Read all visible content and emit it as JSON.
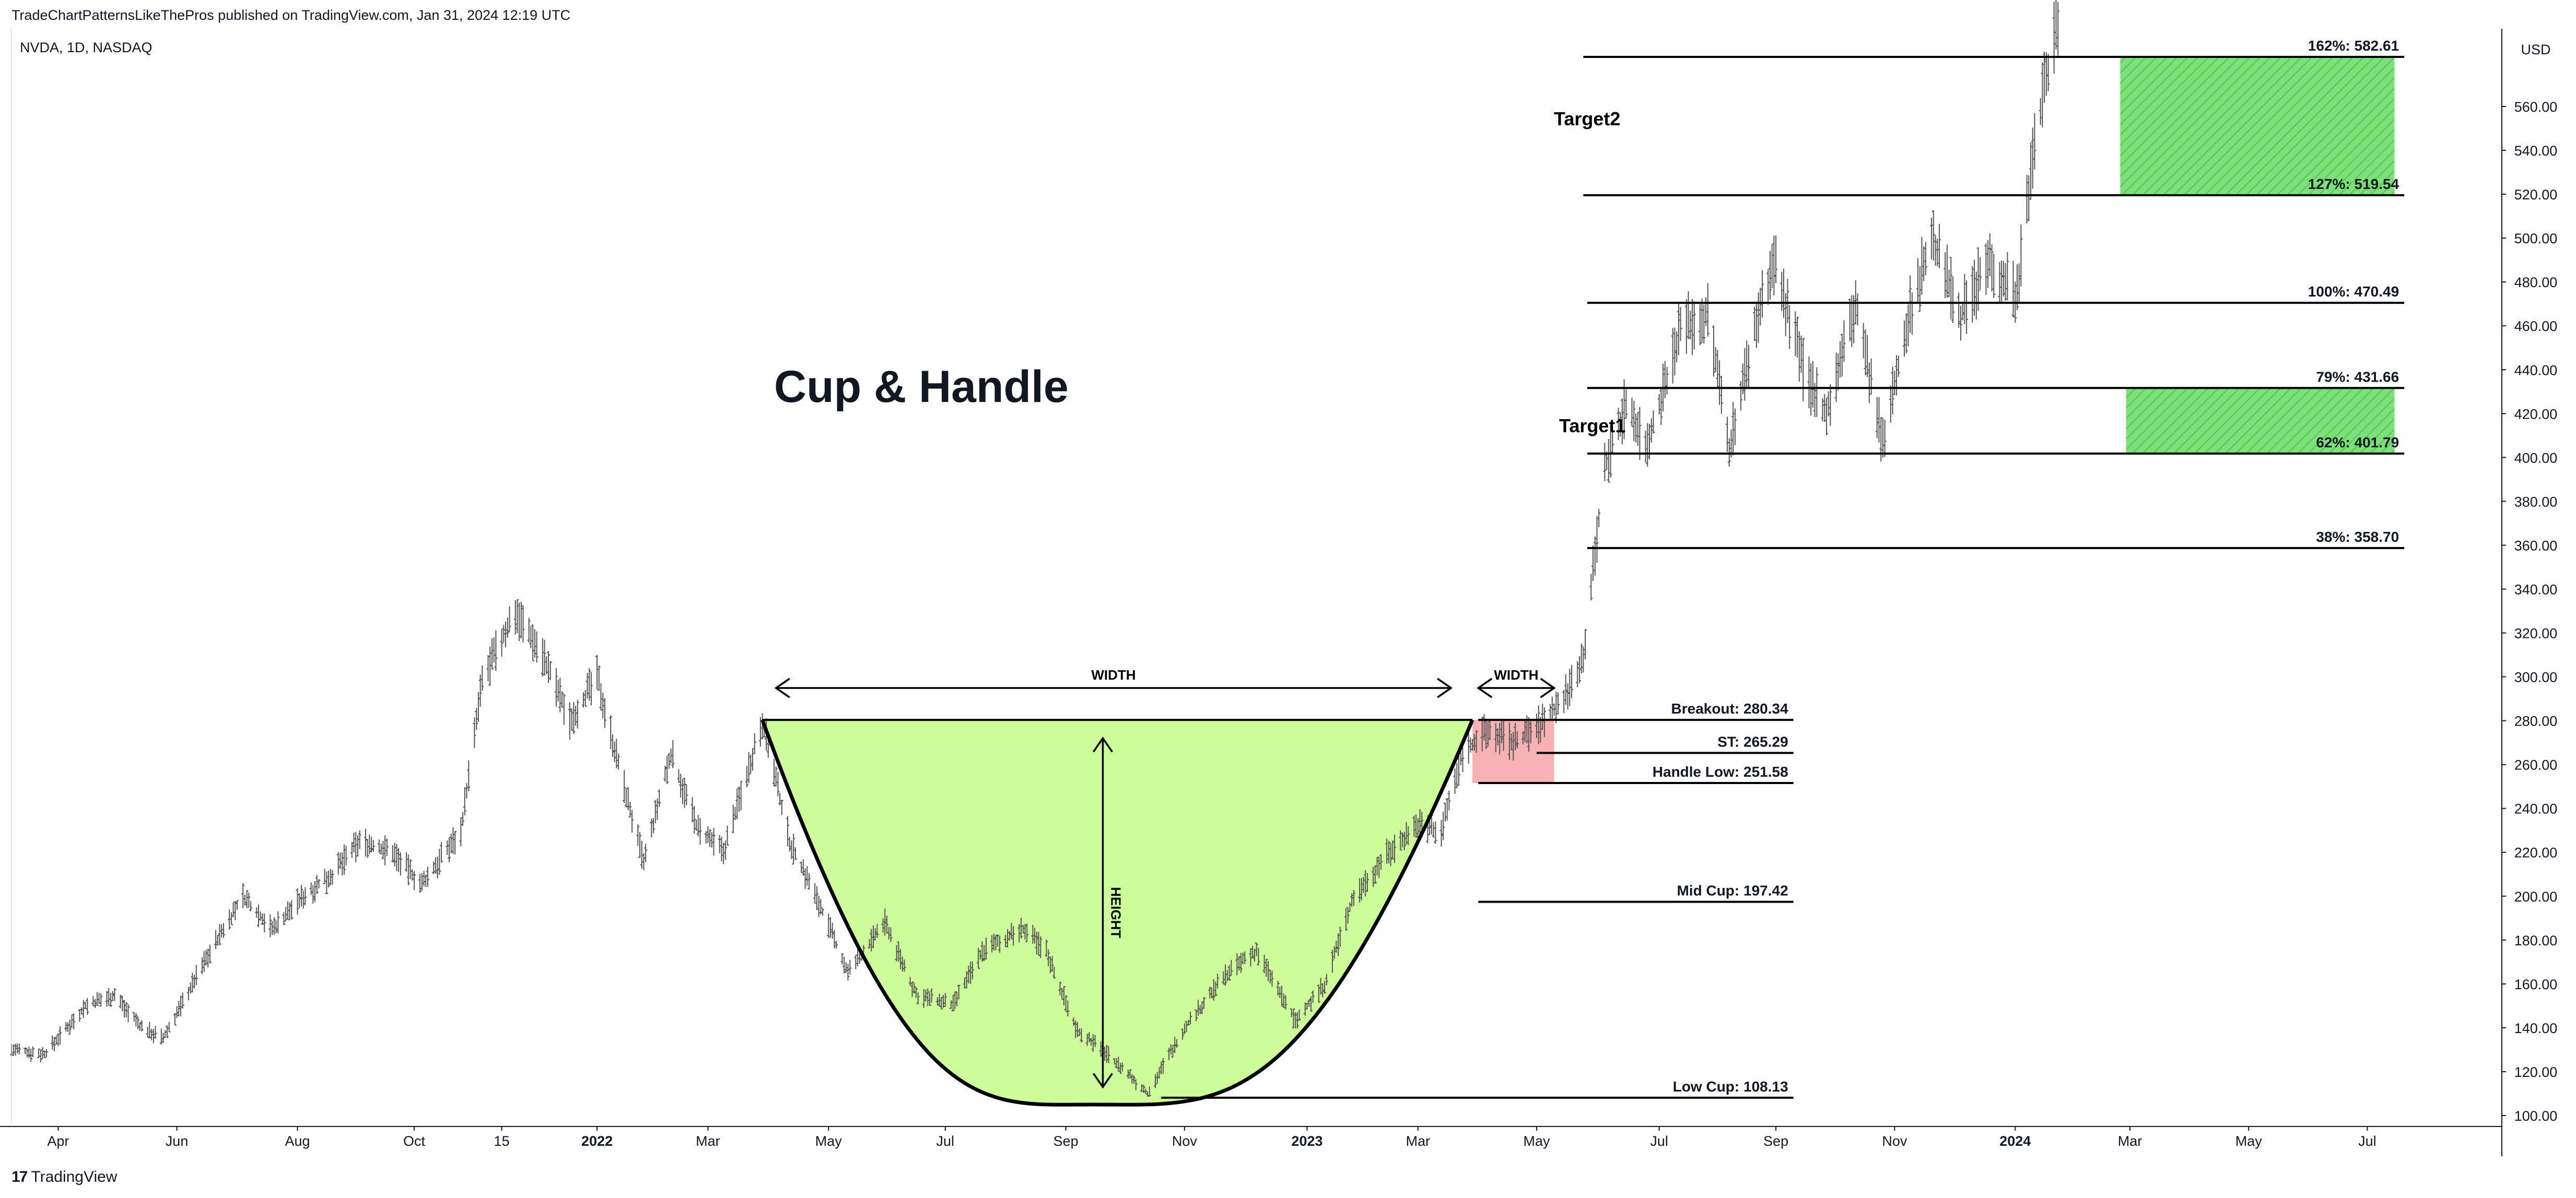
{
  "header": {
    "published": "TradeChartPatternsLikeThePros published on TradingView.com, Jan 31, 2024 12:19 UTC",
    "symbol": "NVDA, 1D, NASDAQ"
  },
  "footer": {
    "brand": "TradingView",
    "brand_icon": "tradingview-logo-icon"
  },
  "chart_data": {
    "type": "line",
    "title": "Cup & Handle",
    "currency": "USD",
    "y_range": [
      90,
      600
    ],
    "x_range": [
      "2021-03-08",
      "2024-08-15"
    ],
    "y_ticks": [
      100,
      120,
      140,
      160,
      180,
      200,
      220,
      240,
      260,
      280,
      300,
      320,
      340,
      360,
      380,
      400,
      420,
      440,
      460,
      480,
      500,
      520,
      540,
      560
    ],
    "x_ticks": [
      {
        "date": "2021-04-01",
        "label": "Apr",
        "bold": false
      },
      {
        "date": "2021-06-01",
        "label": "Jun",
        "bold": false
      },
      {
        "date": "2021-08-02",
        "label": "Aug",
        "bold": false
      },
      {
        "date": "2021-10-01",
        "label": "Oct",
        "bold": false
      },
      {
        "date": "2021-11-15",
        "label": "15",
        "bold": false
      },
      {
        "date": "2022-01-03",
        "label": "2022",
        "bold": true
      },
      {
        "date": "2022-03-01",
        "label": "Mar",
        "bold": false
      },
      {
        "date": "2022-05-02",
        "label": "May",
        "bold": false
      },
      {
        "date": "2022-07-01",
        "label": "Jul",
        "bold": false
      },
      {
        "date": "2022-09-01",
        "label": "Sep",
        "bold": false
      },
      {
        "date": "2022-11-01",
        "label": "Nov",
        "bold": false
      },
      {
        "date": "2023-01-03",
        "label": "2023",
        "bold": true
      },
      {
        "date": "2023-03-01",
        "label": "Mar",
        "bold": false
      },
      {
        "date": "2023-05-01",
        "label": "May",
        "bold": false
      },
      {
        "date": "2023-07-03",
        "label": "Jul",
        "bold": false
      },
      {
        "date": "2023-09-01",
        "label": "Sep",
        "bold": false
      },
      {
        "date": "2023-11-01",
        "label": "Nov",
        "bold": false
      },
      {
        "date": "2024-01-02",
        "label": "2024",
        "bold": true
      },
      {
        "date": "2024-03-01",
        "label": "Mar",
        "bold": false
      },
      {
        "date": "2024-05-01",
        "label": "May",
        "bold": false
      },
      {
        "date": "2024-07-01",
        "label": "Jul",
        "bold": false
      }
    ],
    "price_path": [
      {
        "date": "2021-03-08",
        "price": 130
      },
      {
        "date": "2021-03-25",
        "price": 128
      },
      {
        "date": "2021-04-15",
        "price": 150
      },
      {
        "date": "2021-04-30",
        "price": 155
      },
      {
        "date": "2021-05-14",
        "price": 140
      },
      {
        "date": "2021-05-25",
        "price": 135
      },
      {
        "date": "2021-06-15",
        "price": 170
      },
      {
        "date": "2021-07-05",
        "price": 200
      },
      {
        "date": "2021-07-20",
        "price": 185
      },
      {
        "date": "2021-08-05",
        "price": 200
      },
      {
        "date": "2021-08-20",
        "price": 210
      },
      {
        "date": "2021-09-03",
        "price": 225
      },
      {
        "date": "2021-09-20",
        "price": 220
      },
      {
        "date": "2021-10-05",
        "price": 205
      },
      {
        "date": "2021-10-25",
        "price": 230
      },
      {
        "date": "2021-11-05",
        "price": 298
      },
      {
        "date": "2021-11-22",
        "price": 330
      },
      {
        "date": "2021-12-06",
        "price": 310
      },
      {
        "date": "2021-12-20",
        "price": 280
      },
      {
        "date": "2022-01-03",
        "price": 300
      },
      {
        "date": "2022-01-14",
        "price": 260
      },
      {
        "date": "2022-01-27",
        "price": 215
      },
      {
        "date": "2022-02-10",
        "price": 265
      },
      {
        "date": "2022-02-24",
        "price": 230
      },
      {
        "date": "2022-03-09",
        "price": 220
      },
      {
        "date": "2022-03-29",
        "price": 280
      },
      {
        "date": "2022-04-12",
        "price": 225
      },
      {
        "date": "2022-04-28",
        "price": 195
      },
      {
        "date": "2022-05-12",
        "price": 165
      },
      {
        "date": "2022-05-31",
        "price": 188
      },
      {
        "date": "2022-06-16",
        "price": 155
      },
      {
        "date": "2022-07-05",
        "price": 150
      },
      {
        "date": "2022-07-20",
        "price": 175
      },
      {
        "date": "2022-08-10",
        "price": 185
      },
      {
        "date": "2022-08-22",
        "price": 175
      },
      {
        "date": "2022-09-06",
        "price": 140
      },
      {
        "date": "2022-09-26",
        "price": 125
      },
      {
        "date": "2022-10-13",
        "price": 110
      },
      {
        "date": "2022-11-01",
        "price": 140
      },
      {
        "date": "2022-11-23",
        "price": 165
      },
      {
        "date": "2022-12-08",
        "price": 175
      },
      {
        "date": "2022-12-28",
        "price": 143
      },
      {
        "date": "2023-01-12",
        "price": 160
      },
      {
        "date": "2023-01-27",
        "price": 200
      },
      {
        "date": "2023-02-14",
        "price": 220
      },
      {
        "date": "2023-03-01",
        "price": 233
      },
      {
        "date": "2023-03-13",
        "price": 230
      },
      {
        "date": "2023-03-24",
        "price": 265
      },
      {
        "date": "2023-04-05",
        "price": 275
      },
      {
        "date": "2023-04-20",
        "price": 270
      },
      {
        "date": "2023-05-05",
        "price": 280
      },
      {
        "date": "2023-05-15",
        "price": 290
      },
      {
        "date": "2023-05-25",
        "price": 310
      },
      {
        "date": "2023-06-05",
        "price": 395
      },
      {
        "date": "2023-06-16",
        "price": 425
      },
      {
        "date": "2023-06-27",
        "price": 405
      },
      {
        "date": "2023-07-14",
        "price": 460
      },
      {
        "date": "2023-07-28",
        "price": 465
      },
      {
        "date": "2023-08-08",
        "price": 405
      },
      {
        "date": "2023-08-24",
        "price": 470
      },
      {
        "date": "2023-08-31",
        "price": 490
      },
      {
        "date": "2023-09-15",
        "price": 440
      },
      {
        "date": "2023-09-27",
        "price": 420
      },
      {
        "date": "2023-10-12",
        "price": 470
      },
      {
        "date": "2023-10-26",
        "price": 405
      },
      {
        "date": "2023-11-08",
        "price": 465
      },
      {
        "date": "2023-11-20",
        "price": 500
      },
      {
        "date": "2023-12-05",
        "price": 465
      },
      {
        "date": "2023-12-20",
        "price": 490
      },
      {
        "date": "2024-01-03",
        "price": 475
      },
      {
        "date": "2024-01-12",
        "price": 545
      },
      {
        "date": "2024-01-24",
        "price": 600
      }
    ],
    "levels": [
      {
        "label": "162%: 582.61",
        "value": 582.61,
        "from": "2023-05-25",
        "to": "2024-07-20"
      },
      {
        "label": "127%: 519.54",
        "value": 519.54,
        "from": "2023-05-25",
        "to": "2024-07-20"
      },
      {
        "label": "100%: 470.49",
        "value": 470.49,
        "from": "2023-05-27",
        "to": "2024-07-20"
      },
      {
        "label": "79%: 431.66",
        "value": 431.66,
        "from": "2023-05-27",
        "to": "2024-07-20"
      },
      {
        "label": "62%: 401.79",
        "value": 401.79,
        "from": "2023-05-27",
        "to": "2024-07-20"
      },
      {
        "label": "38%: 358.70",
        "value": 358.7,
        "from": "2023-05-27",
        "to": "2024-07-20"
      },
      {
        "label": "Breakout: 280.34",
        "value": 280.34,
        "from": "2023-04-01",
        "to": "2023-09-10"
      },
      {
        "label": "ST: 265.29",
        "value": 265.29,
        "from": "2023-05-01",
        "to": "2023-09-10"
      },
      {
        "label": "Handle Low: 251.58",
        "value": 251.58,
        "from": "2023-04-01",
        "to": "2023-09-10"
      },
      {
        "label": "Mid Cup: 197.42",
        "value": 197.42,
        "from": "2023-04-01",
        "to": "2023-09-10"
      },
      {
        "label": "Low Cup: 108.13",
        "value": 108.13,
        "from": "2022-10-20",
        "to": "2023-09-10"
      }
    ],
    "cup": {
      "start": "2022-03-29",
      "bottom": "2022-09-15",
      "end": "2023-03-29",
      "rim": 280.34,
      "low": 105
    },
    "handle_zone": {
      "from": "2023-03-29",
      "to": "2023-05-10",
      "high": 280.34,
      "low": 251.58
    },
    "target_zones": [
      {
        "label": "Target2",
        "from": "2024-02-25",
        "to": "2024-07-15",
        "high": 582.61,
        "low": 519.54
      },
      {
        "label": "Target1",
        "from": "2024-02-28",
        "to": "2024-07-15",
        "high": 431.66,
        "low": 401.79
      }
    ],
    "width_label": "WIDTH",
    "handle_width_label": "WIDTH",
    "height_label": "HEIGHT"
  }
}
